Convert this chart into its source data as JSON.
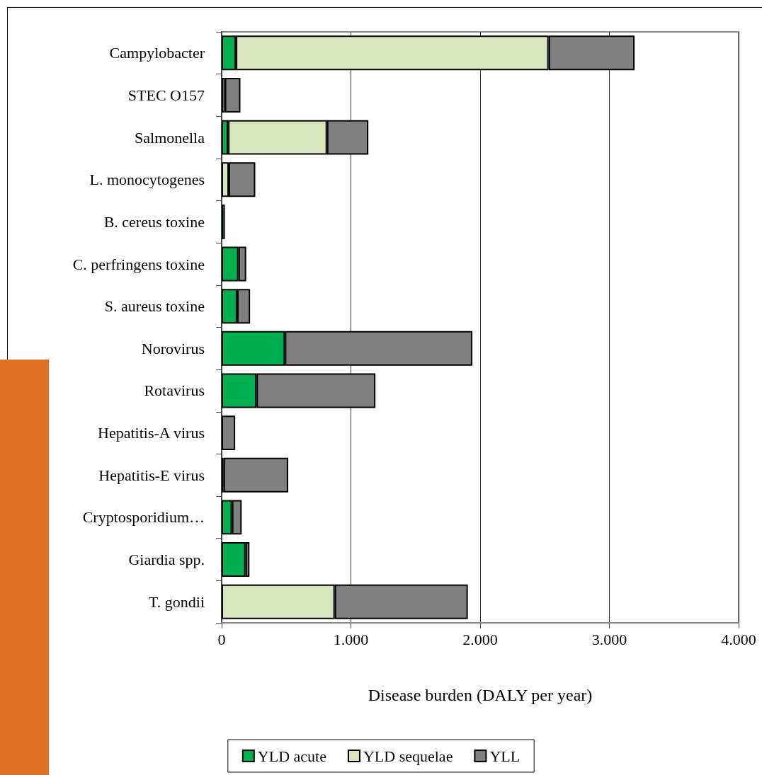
{
  "chart_data": {
    "type": "bar",
    "orientation": "horizontal",
    "stacked": true,
    "xlabel": "Disease burden (DALY per year)",
    "categories": [
      "Campylobacter",
      "STEC O157",
      "Salmonella",
      "L. monocytogenes",
      "B. cereus toxine",
      "C. perfringens toxine",
      "S. aureus toxine",
      "Norovirus",
      "Rotavirus",
      "Hepatitis-A virus",
      "Hepatitis-E virus",
      "Cryptosporidium…",
      "Giardia spp.",
      "T. gondii"
    ],
    "series": [
      {
        "name": "YLD acute",
        "color": "#00b050",
        "values": [
          110,
          null,
          50,
          null,
          25,
          130,
          120,
          490,
          270,
          null,
          15,
          80,
          185,
          null
        ]
      },
      {
        "name": "YLD sequelae",
        "color": "#d8e4bc",
        "values": [
          2420,
          25,
          765,
          55,
          null,
          null,
          null,
          null,
          null,
          null,
          null,
          null,
          null,
          875
        ]
      },
      {
        "name": "YLL",
        "color": "#808080",
        "values": [
          665,
          120,
          320,
          205,
          null,
          60,
          100,
          1450,
          920,
          105,
          500,
          75,
          30,
          1030
        ]
      }
    ],
    "xlim": [
      0,
      4000
    ],
    "xticks": [
      0,
      {
        "value": 1000,
        "label": "1.000"
      },
      {
        "value": 2000,
        "label": "2.000"
      },
      {
        "value": 3000,
        "label": "3.000"
      },
      {
        "value": 4000,
        "label": "4.000"
      }
    ],
    "grid": "x",
    "legend": "bottom"
  }
}
